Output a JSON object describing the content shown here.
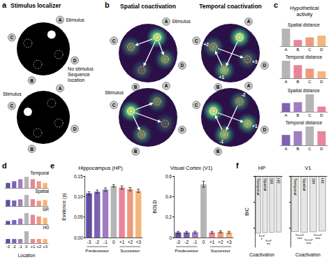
{
  "figure": {
    "a": {
      "letter": "a",
      "title": "Stimulus localizer",
      "locations": [
        "A",
        "B",
        "C",
        "D"
      ],
      "rows": [
        {
          "stimulus": "A",
          "notes": [
            {
              "at": "A",
              "text": "Stimulus"
            },
            {
              "at": "D",
              "text": "No stimulus"
            },
            {
              "at": "D",
              "text": "Sequence location"
            }
          ]
        },
        {
          "stimulus": "C",
          "notes": [
            {
              "at": "C",
              "text": "Stimulus"
            }
          ]
        }
      ]
    },
    "b": {
      "letter": "b",
      "titles": [
        "Spatial coactivation",
        "Temporal coactivation"
      ],
      "rows": [
        {
          "stimulus": "A",
          "note": "Stimulus",
          "temporal_labels": {
            "B": "+1",
            "C": "+2",
            "D": "+3"
          }
        },
        {
          "stimulus": "C",
          "note": "Stimulus",
          "temporal_labels": {
            "A": "-2",
            "B": "-1",
            "D": "+1"
          }
        }
      ]
    },
    "c": {
      "letter": "c",
      "title": "Hypothetical activity"
    },
    "d": {
      "letter": "d"
    },
    "e": {
      "letter": "e"
    },
    "f": {
      "letter": "f"
    }
  },
  "chart_data": [
    {
      "type": "bar",
      "title": "Spatial distance",
      "categories": [
        "A",
        "B",
        "C",
        "D"
      ],
      "values": [
        1.0,
        0.35,
        0.5,
        0.6
      ],
      "colors": [
        "#b5b5b5",
        "#e8859a",
        "#ef9a7c",
        "#f4b67a"
      ],
      "ylim": [
        0,
        1
      ],
      "tick_labels": "x"
    },
    {
      "type": "bar",
      "title": "Temporal distance",
      "categories": [
        "A",
        "B",
        "C",
        "D"
      ],
      "values": [
        1.0,
        0.75,
        0.55,
        0.4
      ],
      "colors": [
        "#b5b5b5",
        "#e8859a",
        "#ef9a7c",
        "#f4b67a"
      ],
      "ylim": [
        0,
        1
      ],
      "tick_labels": "x"
    },
    {
      "type": "bar",
      "title": "Spatial distance",
      "categories": [
        "A",
        "B",
        "C",
        "D"
      ],
      "values": [
        0.5,
        0.55,
        1.0,
        0.3
      ],
      "colors": [
        "#7d63b0",
        "#a07cc0",
        "#b5b5b5",
        "#e8859a"
      ],
      "ylim": [
        0,
        1
      ],
      "tick_labels": "x"
    },
    {
      "type": "bar",
      "title": "Temporal distance",
      "categories": [
        "A",
        "B",
        "C",
        "D"
      ],
      "values": [
        0.55,
        0.75,
        1.0,
        0.75
      ],
      "colors": [
        "#7d63b0",
        "#a07cc0",
        "#b5b5b5",
        "#e8859a"
      ],
      "ylim": [
        0,
        1
      ],
      "tick_labels": "x"
    },
    {
      "type": "bar",
      "title": "Temporal",
      "categories": [
        "-3",
        "-2",
        "-1",
        "0",
        "+1",
        "+2",
        "+3"
      ],
      "values": [
        0.45,
        0.6,
        0.78,
        1.0,
        0.78,
        0.6,
        0.45
      ],
      "colors": [
        "#5e4fa2",
        "#7d63b0",
        "#a07cc0",
        "#b5b5b5",
        "#e8859a",
        "#ef9a7c",
        "#f4b67a"
      ],
      "ylim": [
        0,
        1
      ],
      "tick_labels": false
    },
    {
      "type": "bar",
      "title": "Spatial",
      "categories": [
        "-3",
        "-2",
        "-1",
        "0",
        "+1",
        "+2",
        "+3"
      ],
      "values": [
        0.55,
        0.5,
        0.6,
        1.0,
        0.62,
        0.48,
        0.55
      ],
      "colors": [
        "#5e4fa2",
        "#7d63b0",
        "#a07cc0",
        "#b5b5b5",
        "#e8859a",
        "#ef9a7c",
        "#f4b67a"
      ],
      "ylim": [
        0,
        1
      ],
      "tick_labels": false
    },
    {
      "type": "bar",
      "title": "SR",
      "categories": [
        "-3",
        "-2",
        "-1",
        "0",
        "+1",
        "+2",
        "+3"
      ],
      "values": [
        0.3,
        0.38,
        0.5,
        1.0,
        0.85,
        0.7,
        0.58
      ],
      "colors": [
        "#5e4fa2",
        "#7d63b0",
        "#a07cc0",
        "#b5b5b5",
        "#e8859a",
        "#ef9a7c",
        "#f4b67a"
      ],
      "ylim": [
        0,
        1
      ],
      "tick_labels": false
    },
    {
      "type": "bar",
      "title": "H0",
      "xlabel": "Location",
      "categories": [
        "-3",
        "-2",
        "-1",
        "0",
        "+1",
        "+2",
        "+3"
      ],
      "values": [
        0.35,
        0.35,
        0.35,
        1.0,
        0.35,
        0.35,
        0.35
      ],
      "colors": [
        "#5e4fa2",
        "#7d63b0",
        "#a07cc0",
        "#b5b5b5",
        "#e8859a",
        "#ef9a7c",
        "#f4b67a"
      ],
      "ylim": [
        0,
        1
      ],
      "tick_labels": "x"
    },
    {
      "type": "bar",
      "title": "Hippocampus (HP)",
      "ylabel": "Evidence (ρ)",
      "categories": [
        "-3",
        "-2",
        "-1",
        "0",
        "+1",
        "+2",
        "+3"
      ],
      "values": [
        0.108,
        0.112,
        0.117,
        0.126,
        0.122,
        0.118,
        0.114
      ],
      "errors": [
        0.004,
        0.004,
        0.004,
        0.003,
        0.004,
        0.004,
        0.004
      ],
      "colors": [
        "#5e4fa2",
        "#7d63b0",
        "#a07cc0",
        "#b5b5b5",
        "#e8859a",
        "#ef9a7c",
        "#f4b67a"
      ],
      "ylim": [
        0,
        0.15
      ],
      "yticks": [
        {
          "value": 0,
          "label": "0.00"
        },
        {
          "value": 0.05,
          "label": "0.05"
        },
        {
          "value": 0.1,
          "label": "0.10"
        },
        {
          "value": 0.15,
          "label": "0.15"
        }
      ],
      "groups": [
        {
          "label": "Predecessor",
          "categories": [
            "-3",
            "-2",
            "-1"
          ]
        },
        {
          "label": "Successor",
          "categories": [
            "+1",
            "+2",
            "+3"
          ]
        }
      ]
    },
    {
      "type": "bar",
      "title": "Visual Cortex (V1)",
      "ylabel": "BOLD",
      "categories": [
        "-3",
        "-2",
        "-1",
        "0",
        "+1",
        "+2",
        "+3"
      ],
      "values": [
        0.05,
        0.05,
        0.052,
        0.52,
        0.05,
        0.055,
        0.05
      ],
      "errors": [
        0.01,
        0.01,
        0.01,
        0.03,
        0.01,
        0.01,
        0.01
      ],
      "colors": [
        "#5e4fa2",
        "#7d63b0",
        "#a07cc0",
        "#b5b5b5",
        "#e8859a",
        "#ef9a7c",
        "#f4b67a"
      ],
      "ylim": [
        0,
        0.6
      ],
      "yticks": [
        0,
        0.2,
        0.4,
        0.6
      ],
      "groups": [
        {
          "label": "Predecessor",
          "categories": [
            "-3",
            "-2",
            "-1"
          ]
        },
        {
          "label": "Successor",
          "categories": [
            "+1",
            "+2",
            "+3"
          ]
        }
      ]
    },
    {
      "type": "bar",
      "title": "HP",
      "ylabel": "BIC",
      "xlabel": "Coactivation",
      "categories": [
        "Temporal",
        "Spatial",
        "SR",
        "H0"
      ],
      "values": [
        -4420,
        -4380,
        -4360,
        -4340
      ],
      "color": "#e6e6e6",
      "ylim": [
        -5500,
        0
      ],
      "yticks": [
        -4000,
        -2000,
        0
      ],
      "tick_labels": "x",
      "significance": [
        {
          "pair": [
            0,
            1
          ],
          "label": "*"
        },
        {
          "pair": [
            1,
            2
          ],
          "label": "**"
        }
      ]
    },
    {
      "type": "bar",
      "title": "V1",
      "xlabel": "Coactivation",
      "categories": [
        "Temporal",
        "Spatial",
        "SR",
        "H0"
      ],
      "values": [
        -4300,
        -4350,
        -4320,
        -4270
      ],
      "color": "#e6e6e6",
      "ylim": [
        -5500,
        0
      ],
      "yticks": [
        -4000,
        -2000,
        0
      ],
      "tick_labels": "x",
      "significance": [
        {
          "pair": [
            0,
            1
          ],
          "label": "***"
        },
        {
          "pair": [
            1,
            2
          ],
          "label": "***"
        },
        {
          "pair": [
            2,
            3
          ],
          "label": "***"
        }
      ]
    }
  ]
}
